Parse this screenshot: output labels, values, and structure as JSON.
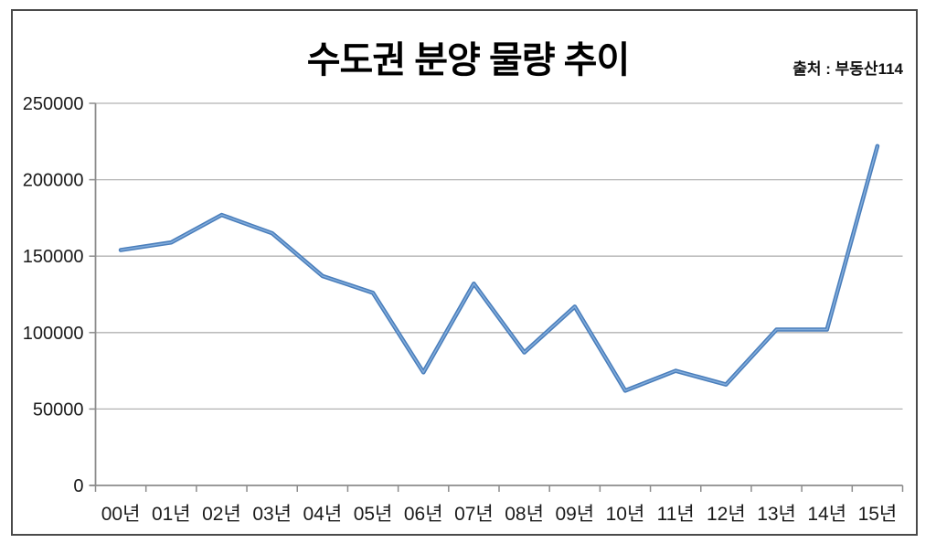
{
  "title": "수도권 분양 물량 추이",
  "source": "출처 : 부동산114",
  "chart_data": {
    "type": "line",
    "title": "수도권 분양 물량 추이",
    "categories": [
      "00년",
      "01년",
      "02년",
      "03년",
      "04년",
      "05년",
      "06년",
      "07년",
      "08년",
      "09년",
      "10년",
      "11년",
      "12년",
      "13년",
      "14년",
      "15년"
    ],
    "values": [
      154000,
      159000,
      177000,
      165000,
      137000,
      126000,
      74000,
      132000,
      87000,
      117000,
      62000,
      75000,
      66000,
      102000,
      102000,
      222000
    ],
    "xlabel": "",
    "ylabel": "",
    "ylim": [
      0,
      250000
    ],
    "y_ticks": [
      0,
      50000,
      100000,
      150000,
      200000,
      250000
    ],
    "grid": true,
    "legend_position": "none",
    "annotation": "출처 : 부동산114"
  },
  "colors": {
    "line": "#4a7ebb",
    "line_highlight": "#8ab2e0",
    "grid": "#b2b2b2",
    "axis": "#8c8c8c",
    "text": "#1a1a1a",
    "frame_border": "#4a4a4a",
    "background": "#ffffff"
  }
}
